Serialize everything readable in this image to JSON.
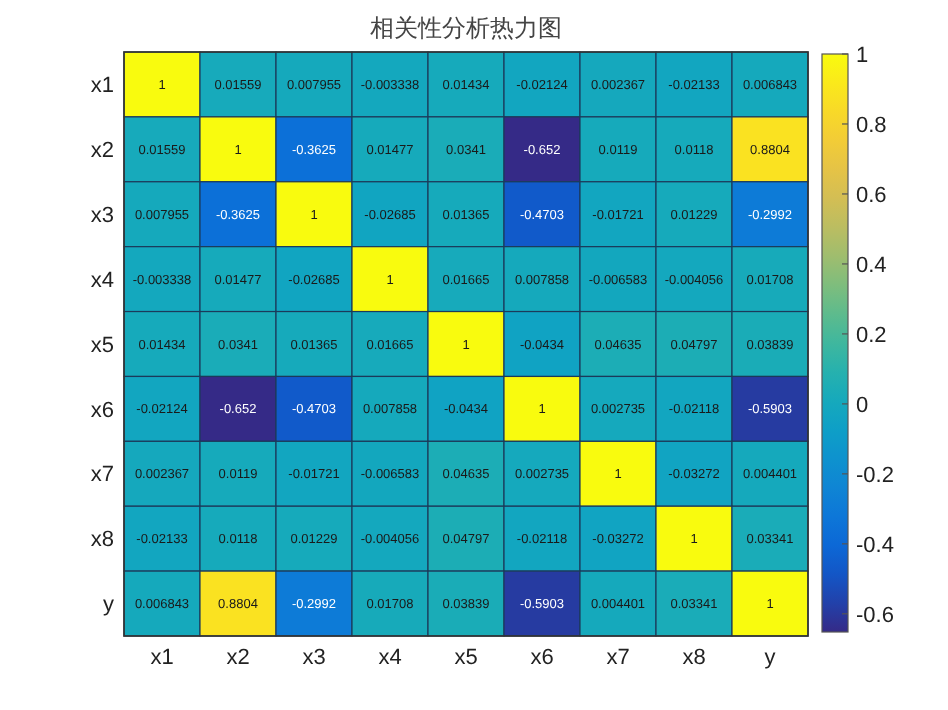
{
  "chart_data": {
    "type": "heatmap",
    "title": "相关性分析热力图",
    "categories": [
      "x1",
      "x2",
      "x3",
      "x4",
      "x5",
      "x6",
      "x7",
      "x8",
      "y"
    ],
    "y_categories": [
      "x1",
      "x2",
      "x3",
      "x4",
      "x5",
      "x6",
      "x7",
      "x8",
      "y"
    ],
    "cells": [
      [
        1,
        0.01559,
        0.007955,
        -0.003338,
        0.01434,
        -0.02124,
        0.002367,
        -0.02133,
        0.006843
      ],
      [
        0.01559,
        1,
        -0.3625,
        0.01477,
        0.0341,
        -0.652,
        0.0119,
        0.0118,
        0.8804
      ],
      [
        0.007955,
        -0.3625,
        1,
        -0.02685,
        0.01365,
        -0.4703,
        -0.01721,
        0.01229,
        -0.2992
      ],
      [
        -0.003338,
        0.01477,
        -0.02685,
        1,
        0.01665,
        0.007858,
        -0.006583,
        -0.004056,
        0.01708
      ],
      [
        0.01434,
        0.0341,
        0.01365,
        0.01665,
        1,
        -0.0434,
        0.04635,
        0.04797,
        0.03839
      ],
      [
        -0.02124,
        -0.652,
        -0.4703,
        0.007858,
        -0.0434,
        1,
        0.002735,
        -0.02118,
        -0.5903
      ],
      [
        0.002367,
        0.0119,
        -0.01721,
        -0.006583,
        0.04635,
        0.002735,
        1,
        -0.03272,
        0.004401
      ],
      [
        -0.02133,
        0.0118,
        0.01229,
        -0.004056,
        0.04797,
        -0.02118,
        -0.03272,
        1,
        0.03341
      ],
      [
        0.006843,
        0.8804,
        -0.2992,
        0.01708,
        0.03839,
        -0.5903,
        0.004401,
        0.03341,
        1
      ]
    ],
    "data_labels": true,
    "clim": [
      -0.652,
      1
    ],
    "cticks": [
      -0.6,
      -0.4,
      -0.2,
      0,
      0.2,
      0.4,
      0.6,
      0.8,
      1
    ]
  }
}
